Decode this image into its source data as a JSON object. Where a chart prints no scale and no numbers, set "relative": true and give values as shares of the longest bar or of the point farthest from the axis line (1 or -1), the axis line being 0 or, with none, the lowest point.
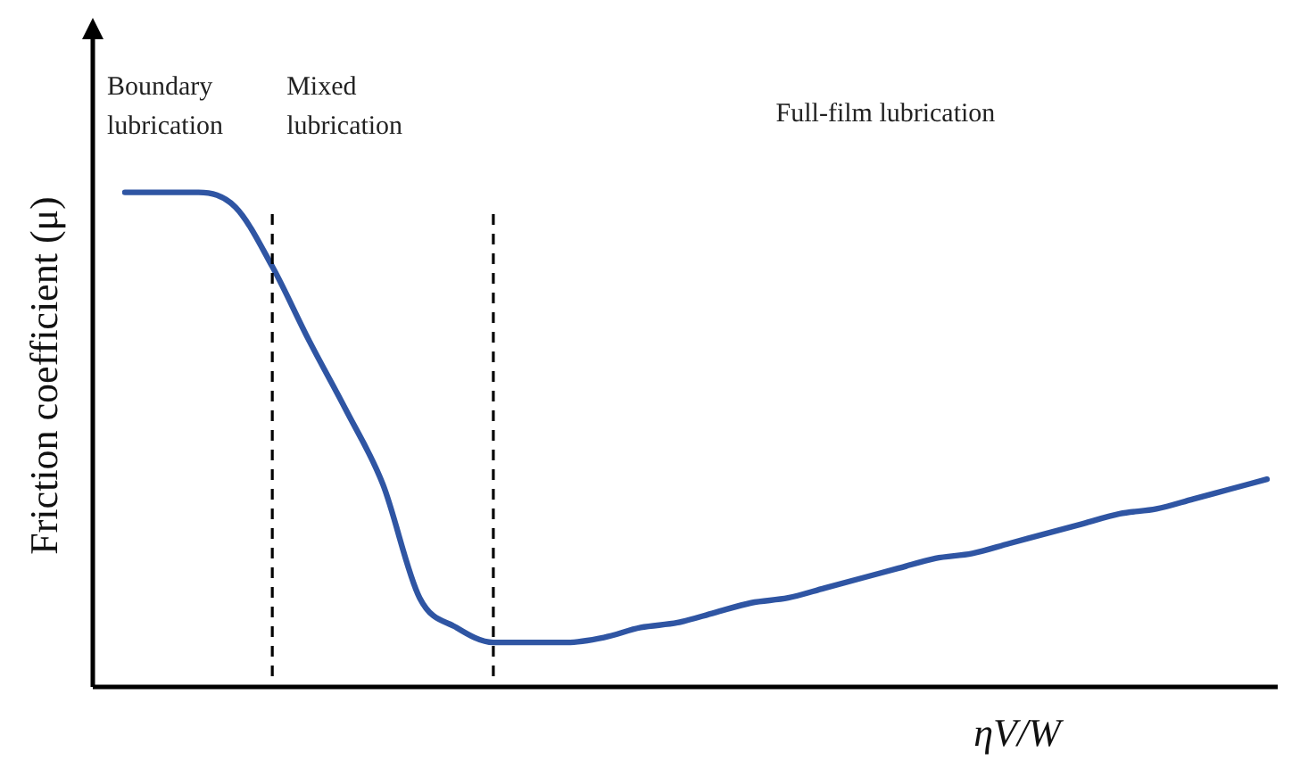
{
  "chart_data": {
    "type": "line",
    "relative": true,
    "xlabel": "ηV/W",
    "ylabel": "Friction coefficient (μ)",
    "categories": [
      null,
      null,
      null,
      null,
      null,
      null,
      null,
      null,
      null,
      null,
      null,
      null,
      null,
      null,
      null,
      null,
      null,
      null,
      null,
      null,
      null,
      null,
      null,
      null,
      null,
      null,
      null,
      null,
      null,
      null,
      null,
      null
    ],
    "series": [
      {
        "color": "#2f55a3",
        "values": [
          1.0,
          1.0,
          1.0,
          0.97,
          0.85,
          0.7,
          0.56,
          0.41,
          0.18,
          0.12,
          0.09,
          0.09,
          0.09,
          0.1,
          0.12,
          0.13,
          0.15,
          0.17,
          0.18,
          0.2,
          0.22,
          0.24,
          0.26,
          0.27,
          0.29,
          0.31,
          0.33,
          0.35,
          0.36,
          0.38,
          0.4,
          0.42
        ]
      }
    ],
    "annotations": [
      "Boundary lubrication",
      "Mixed lubrication",
      "Full-film lubrication"
    ],
    "marker": "none",
    "line_style": "solid"
  }
}
